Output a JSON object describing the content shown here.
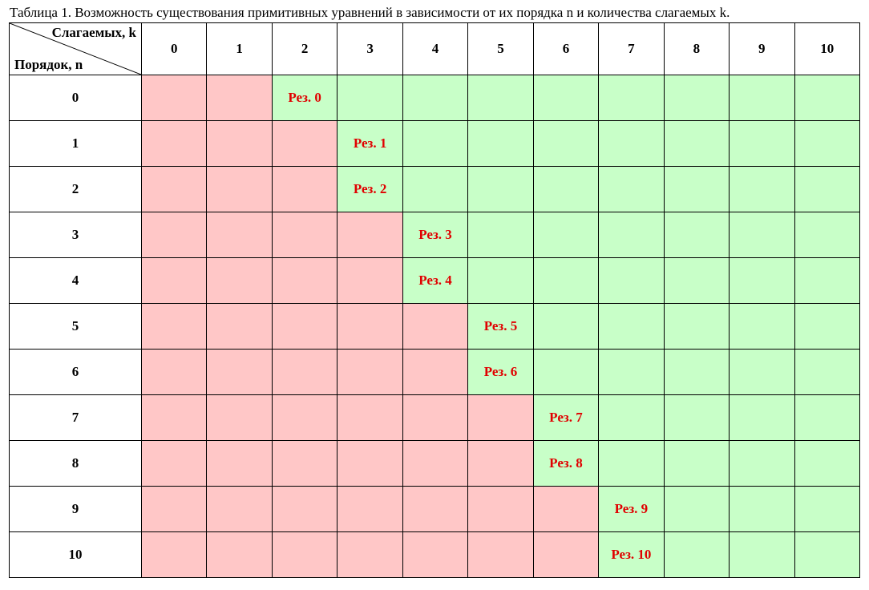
{
  "caption": "Таблица 1. Возможность существования примитивных уравнений в зависимости от их порядка n и количества слагаемых k.",
  "corner": {
    "column_axis": "Слагаемых, k",
    "row_axis": "Порядок, n"
  },
  "columns": [
    "0",
    "1",
    "2",
    "3",
    "4",
    "5",
    "6",
    "7",
    "8",
    "9",
    "10"
  ],
  "rows": [
    "0",
    "1",
    "2",
    "3",
    "4",
    "5",
    "6",
    "7",
    "8",
    "9",
    "10"
  ],
  "result_prefix": "Рез.",
  "first_possible_k_by_row": [
    2,
    3,
    3,
    4,
    4,
    5,
    5,
    6,
    6,
    7,
    7
  ],
  "colors": {
    "impossible": "#ffc7c7",
    "possible": "#c8ffc8",
    "result_text": "#e00000"
  }
}
